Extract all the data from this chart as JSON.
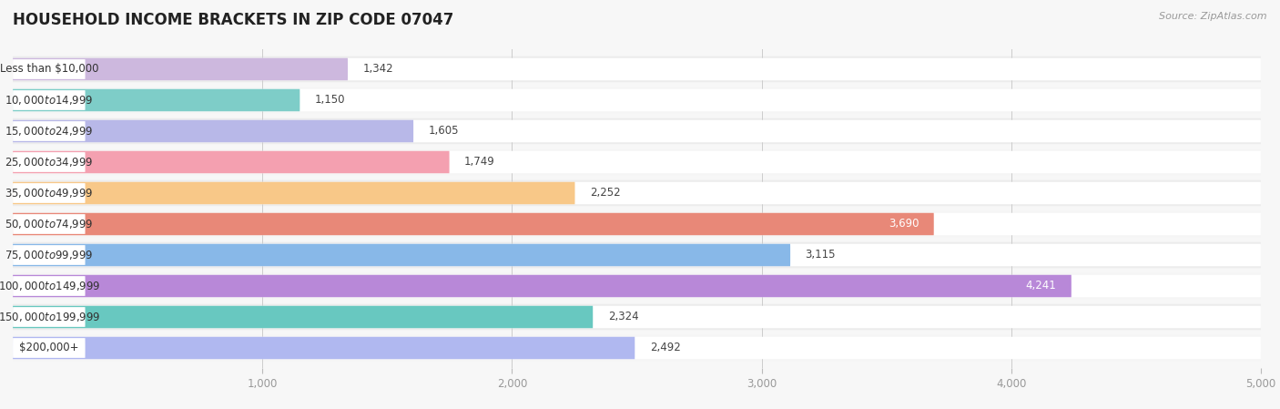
{
  "title": "HOUSEHOLD INCOME BRACKETS IN ZIP CODE 07047",
  "source": "Source: ZipAtlas.com",
  "categories": [
    "Less than $10,000",
    "$10,000 to $14,999",
    "$15,000 to $24,999",
    "$25,000 to $34,999",
    "$35,000 to $49,999",
    "$50,000 to $74,999",
    "$75,000 to $99,999",
    "$100,000 to $149,999",
    "$150,000 to $199,999",
    "$200,000+"
  ],
  "values": [
    1342,
    1150,
    1605,
    1749,
    2252,
    3690,
    3115,
    4241,
    2324,
    2492
  ],
  "colors": [
    "#cdb8de",
    "#7ecdc8",
    "#b8b8e8",
    "#f4a0b0",
    "#f8c888",
    "#e88878",
    "#88b8e8",
    "#b888d8",
    "#68c8c0",
    "#b0b8f0"
  ],
  "xlim": [
    0,
    5000
  ],
  "background_color": "#f7f7f7",
  "bar_bg_color": "#e8e8e8",
  "row_bg_color": "#f0f0f0",
  "title_fontsize": 12,
  "label_fontsize": 8.5,
  "value_fontsize": 8.5,
  "bar_height": 0.72,
  "value_inside_threshold": 3500
}
